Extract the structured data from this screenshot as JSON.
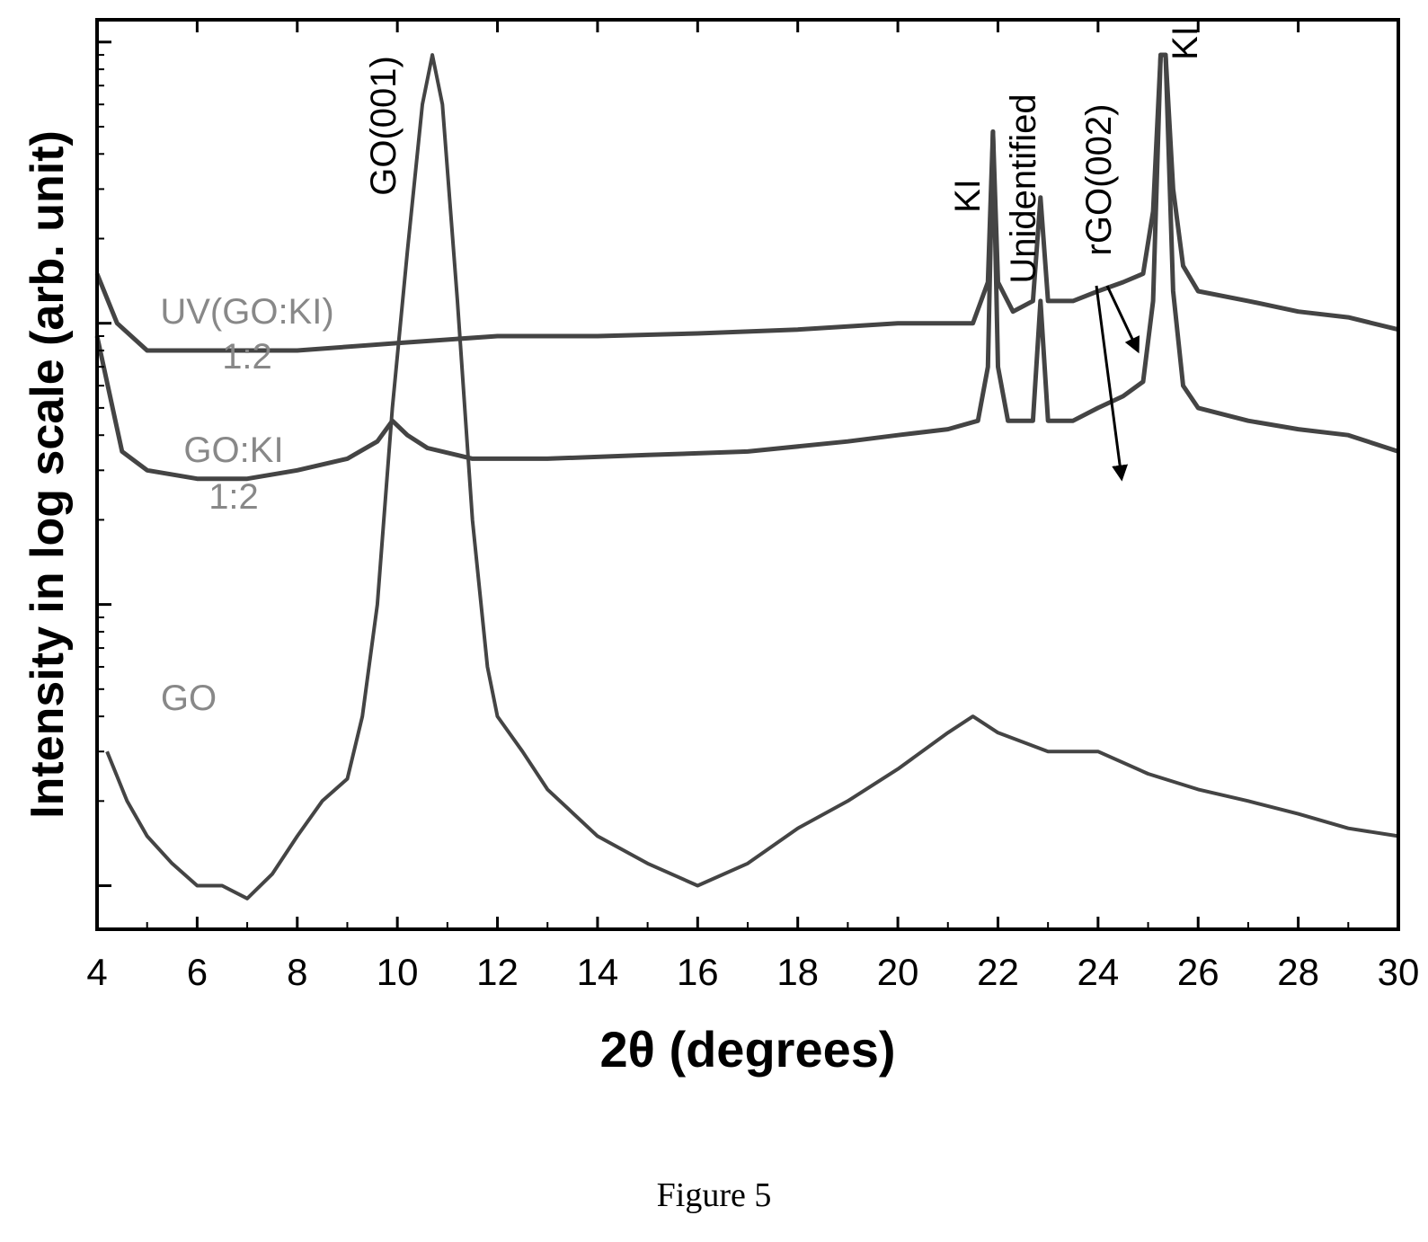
{
  "chart_data": {
    "type": "line",
    "xlabel": "2θ (degrees)",
    "ylabel": "Intensity in log scale (arb. unit)",
    "xlim": [
      4,
      30
    ],
    "xticks": [
      "4",
      "6",
      "8",
      "10",
      "12",
      "14",
      "16",
      "18",
      "20",
      "22",
      "24",
      "26",
      "28",
      "30"
    ],
    "y_scale": "log",
    "y_tick_labels": "none",
    "grid": false,
    "series": [
      {
        "name": "UV(GO:KI) 1:2",
        "label_lines": [
          "UV(GO:KI)",
          "1:2"
        ],
        "points": [
          [
            4.0,
            1.5
          ],
          [
            4.4,
            1.0
          ],
          [
            5.0,
            0.8
          ],
          [
            6.0,
            0.8
          ],
          [
            8.0,
            0.8
          ],
          [
            10.0,
            0.85
          ],
          [
            12.0,
            0.9
          ],
          [
            14.0,
            0.9
          ],
          [
            16.0,
            0.92
          ],
          [
            18.0,
            0.95
          ],
          [
            20.0,
            1.0
          ],
          [
            21.5,
            1.0
          ],
          [
            21.8,
            1.4
          ],
          [
            21.9,
            4.8
          ],
          [
            22.0,
            1.4
          ],
          [
            22.3,
            1.1
          ],
          [
            22.7,
            1.2
          ],
          [
            22.85,
            2.8
          ],
          [
            23.0,
            1.2
          ],
          [
            23.5,
            1.2
          ],
          [
            24.0,
            1.3
          ],
          [
            24.5,
            1.4
          ],
          [
            24.9,
            1.5
          ],
          [
            25.1,
            2.5
          ],
          [
            25.25,
            9.0
          ],
          [
            25.35,
            9.0
          ],
          [
            25.5,
            3.0
          ],
          [
            25.7,
            1.6
          ],
          [
            26.0,
            1.3
          ],
          [
            27.0,
            1.2
          ],
          [
            28.0,
            1.1
          ],
          [
            29.0,
            1.05
          ],
          [
            30.0,
            0.95
          ]
        ]
      },
      {
        "name": "GO:KI 1:2",
        "label_lines": [
          "GO:KI",
          "1:2"
        ],
        "points": [
          [
            4.0,
            0.9
          ],
          [
            4.5,
            0.35
          ],
          [
            5.0,
            0.3
          ],
          [
            6.0,
            0.28
          ],
          [
            7.0,
            0.28
          ],
          [
            8.0,
            0.3
          ],
          [
            9.0,
            0.33
          ],
          [
            9.6,
            0.38
          ],
          [
            9.9,
            0.45
          ],
          [
            10.2,
            0.4
          ],
          [
            10.6,
            0.36
          ],
          [
            11.5,
            0.33
          ],
          [
            13.0,
            0.33
          ],
          [
            15.0,
            0.34
          ],
          [
            17.0,
            0.35
          ],
          [
            19.0,
            0.38
          ],
          [
            20.0,
            0.4
          ],
          [
            21.0,
            0.42
          ],
          [
            21.6,
            0.45
          ],
          [
            21.8,
            0.7
          ],
          [
            21.9,
            4.8
          ],
          [
            22.0,
            0.7
          ],
          [
            22.2,
            0.45
          ],
          [
            22.7,
            0.45
          ],
          [
            22.85,
            1.2
          ],
          [
            23.0,
            0.45
          ],
          [
            23.5,
            0.45
          ],
          [
            24.0,
            0.5
          ],
          [
            24.5,
            0.55
          ],
          [
            24.9,
            0.62
          ],
          [
            25.1,
            1.2
          ],
          [
            25.25,
            9.0
          ],
          [
            25.35,
            9.0
          ],
          [
            25.5,
            1.3
          ],
          [
            25.7,
            0.6
          ],
          [
            26.0,
            0.5
          ],
          [
            27.0,
            0.45
          ],
          [
            28.0,
            0.42
          ],
          [
            29.0,
            0.4
          ],
          [
            30.0,
            0.35
          ]
        ]
      },
      {
        "name": "GO",
        "label_lines": [
          "GO"
        ],
        "points": [
          [
            4.2,
            0.03
          ],
          [
            4.6,
            0.02
          ],
          [
            5.0,
            0.015
          ],
          [
            5.5,
            0.012
          ],
          [
            6.0,
            0.01
          ],
          [
            6.5,
            0.01
          ],
          [
            7.0,
            0.009
          ],
          [
            7.5,
            0.011
          ],
          [
            8.0,
            0.015
          ],
          [
            8.5,
            0.02
          ],
          [
            9.0,
            0.024
          ],
          [
            9.3,
            0.04
          ],
          [
            9.6,
            0.1
          ],
          [
            9.9,
            0.5
          ],
          [
            10.2,
            1.8
          ],
          [
            10.5,
            6.0
          ],
          [
            10.7,
            9.0
          ],
          [
            10.9,
            6.0
          ],
          [
            11.2,
            1.2
          ],
          [
            11.5,
            0.2
          ],
          [
            11.8,
            0.06
          ],
          [
            12.0,
            0.04
          ],
          [
            12.5,
            0.03
          ],
          [
            13.0,
            0.022
          ],
          [
            14.0,
            0.015
          ],
          [
            15.0,
            0.012
          ],
          [
            16.0,
            0.01
          ],
          [
            17.0,
            0.012
          ],
          [
            18.0,
            0.016
          ],
          [
            19.0,
            0.02
          ],
          [
            20.0,
            0.026
          ],
          [
            21.0,
            0.035
          ],
          [
            21.5,
            0.04
          ],
          [
            22.0,
            0.035
          ],
          [
            23.0,
            0.03
          ],
          [
            24.0,
            0.03
          ],
          [
            25.0,
            0.025
          ],
          [
            26.0,
            0.022
          ],
          [
            27.0,
            0.02
          ],
          [
            28.0,
            0.018
          ],
          [
            29.0,
            0.016
          ],
          [
            30.0,
            0.015
          ]
        ]
      }
    ],
    "annotations": [
      "GO(001)",
      "KI",
      "Unidentified",
      "rGO(002)",
      "KI"
    ]
  },
  "caption": "Figure 5"
}
